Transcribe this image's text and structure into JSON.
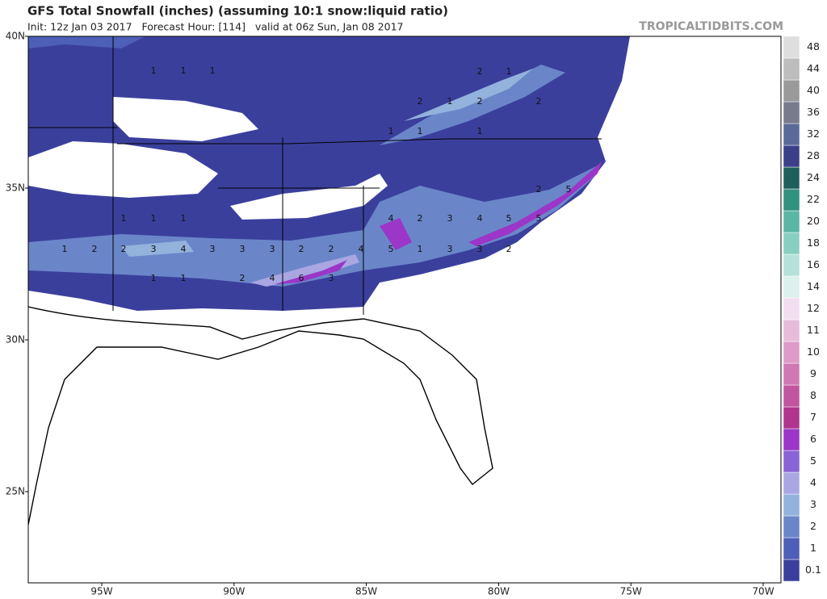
{
  "header": {
    "title": "GFS Total Snowfall (inches) (assuming 10:1 snow:liquid ratio)",
    "subtitle": "Init: 12z Jan 03 2017   Forecast Hour: [114]   valid at 06z Sun, Jan 08 2017",
    "site": "TROPICALTIDBITS.COM"
  },
  "map": {
    "lat_ticks": [
      {
        "value": 40,
        "label": "40N"
      },
      {
        "value": 35,
        "label": "35N"
      },
      {
        "value": 30,
        "label": "30N"
      },
      {
        "value": 25,
        "label": "25N"
      }
    ],
    "lon_ticks": [
      {
        "value": -95,
        "label": "95W"
      },
      {
        "value": -90,
        "label": "90W"
      },
      {
        "value": -85,
        "label": "85W"
      },
      {
        "value": -80,
        "label": "80W"
      },
      {
        "value": -75,
        "label": "75W"
      },
      {
        "value": -70,
        "label": "70W"
      }
    ],
    "contour_labels": [
      1,
      1,
      1,
      2,
      1,
      2,
      2,
      1,
      2,
      1,
      1,
      1,
      2,
      5,
      1,
      1,
      1,
      4,
      2,
      3,
      4,
      5,
      5,
      1,
      2,
      2,
      3,
      4,
      3,
      3,
      3,
      2,
      2,
      4,
      5,
      1,
      3,
      3,
      2,
      1,
      1,
      2,
      4,
      6,
      3
    ]
  },
  "colorbar": {
    "levels": [
      0.1,
      1,
      2,
      3,
      4,
      5,
      6,
      7,
      8,
      9,
      10,
      11,
      12,
      14,
      16,
      18,
      20,
      22,
      24,
      28,
      32,
      36,
      40,
      44,
      48
    ],
    "colors": [
      "#3b3f9c",
      "#4d5fb6",
      "#6a86c9",
      "#93b2dc",
      "#a9a6e2",
      "#8a63d6",
      "#9b36c8",
      "#b0358e",
      "#c2559f",
      "#d078b5",
      "#dc9bc8",
      "#e7bcdb",
      "#f2def0",
      "#dcf0ee",
      "#b4e2da",
      "#88cfc2",
      "#5cb6a6",
      "#32917f",
      "#1f5f5b",
      "#3b3f88",
      "#5a6a98",
      "#777b8c",
      "#9a9a9a",
      "#bdbdbd",
      "#dedede"
    ]
  }
}
